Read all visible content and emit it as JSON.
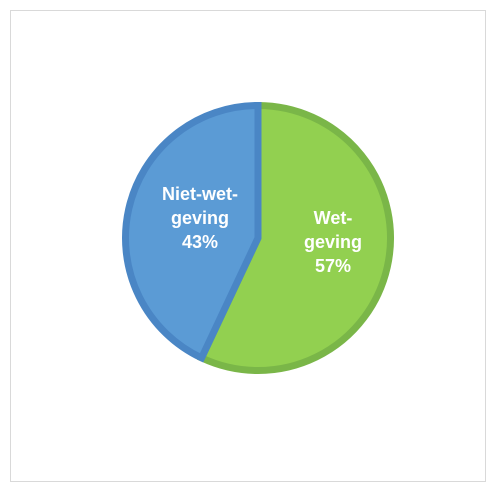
{
  "chart_data": {
    "type": "pie",
    "title": "",
    "categories": [
      "Wet-geving",
      "Niet-wet-geving"
    ],
    "values": [
      57,
      43
    ],
    "unit": "%",
    "labels": [
      {
        "lines": [
          "Wet-",
          "geving",
          "57%"
        ]
      },
      {
        "lines": [
          "Niet-wet-",
          "geving",
          "43%"
        ]
      }
    ],
    "colors": {
      "fill": [
        "#92d050",
        "#5b9bd5"
      ],
      "stroke": [
        "#7ab648",
        "#4a86c5"
      ]
    },
    "legend": "none",
    "start_angle": "12 o'clock",
    "direction": "clockwise"
  }
}
